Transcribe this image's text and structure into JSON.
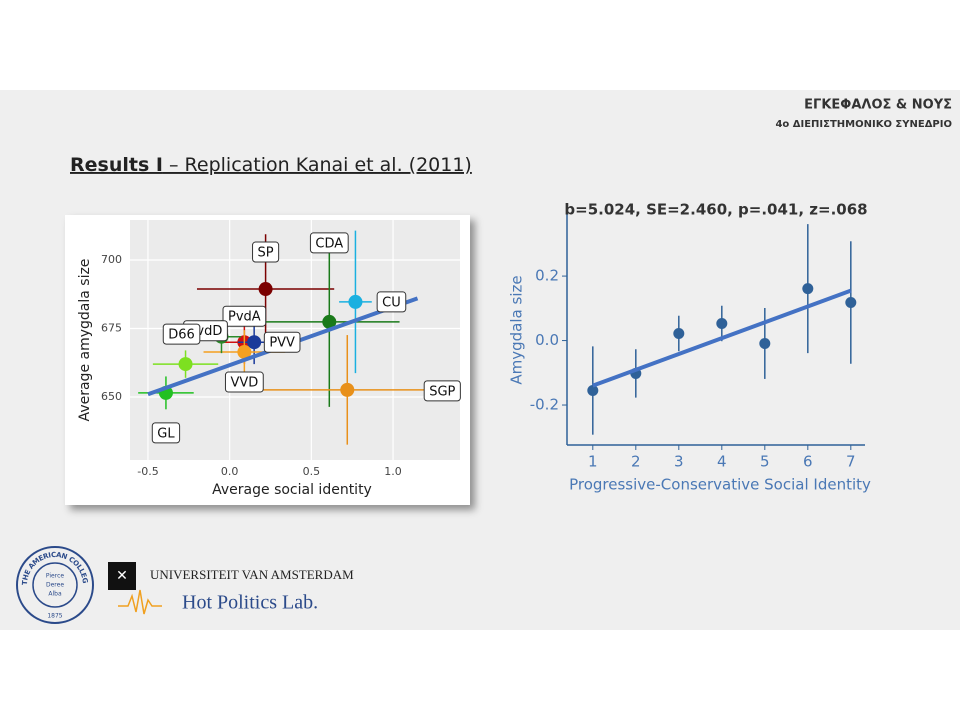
{
  "header": {
    "line1": "ΕΓΚΕΦΑΛΟΣ & ΝΟΥΣ",
    "line2": "4ο ΔΙΕΠΙΣΤΗΜΟΝΙΚΟ ΣΥΝΕΔΡΙΟ"
  },
  "slide_title": {
    "bold": "Results I",
    "rest": " – Replication Kanai et al. (2011)"
  },
  "logos": {
    "college_ring": "THE AMERICAN COLLEGE OF GREECE",
    "college_motto": [
      "Pierce",
      "Deree",
      "Alba"
    ],
    "college_year": "1875",
    "university": "UNIVERSITEIT VAN AMSTERDAM",
    "lab": "Hot Politics Lab."
  },
  "chart_data": [
    {
      "type": "scatter",
      "x_label": "Average social identity",
      "y_label": "Average amygdala size",
      "labels": [
        "SP",
        "CDA",
        "CU",
        "SGP",
        "PvdA",
        "PVV",
        "VVD",
        "PvdD",
        "D66",
        "GL"
      ],
      "x": [
        0.22,
        0.61,
        0.77,
        0.72,
        0.09,
        0.15,
        0.09,
        -0.05,
        -0.27,
        -0.39
      ],
      "y": [
        689.4,
        677.4,
        684.7,
        652.6,
        670,
        670,
        666.4,
        672,
        662,
        651.5
      ],
      "xerr": [
        0.42,
        0.43,
        0.1,
        0.65,
        0.15,
        0.1,
        0.25,
        0.12,
        0.2,
        0.17
      ],
      "yerr": [
        20,
        31,
        26,
        20,
        8,
        8,
        8,
        6,
        5,
        6
      ],
      "colors": [
        "#7b0000",
        "#1a7a1a",
        "#1ab0e0",
        "#e8901a",
        "#d01010",
        "#1a3a9a",
        "#f5a020",
        "#2a8a2a",
        "#7de020",
        "#22c022"
      ],
      "fit": {
        "x": [
          -0.5,
          1.15
        ],
        "y": [
          651,
          686
        ],
        "color": "#4472c4"
      },
      "xlim": [
        -0.61,
        1.41
      ],
      "ylim": [
        627,
        714.6
      ],
      "xticks": [
        {
          "value": -0.5,
          "label": "-0.5"
        },
        {
          "value": 0,
          "label": "0.0"
        },
        {
          "value": 0.5,
          "label": "0.5"
        },
        {
          "value": 1,
          "label": "1.0"
        }
      ],
      "yticks": [
        650,
        675,
        700
      ],
      "grid": true
    },
    {
      "type": "scatter",
      "annotation": "b=5.024, SE=2.460, p=.041, z=.068",
      "x_label": "Progressive-Conservative Social Identity",
      "y_label": "Amygdala size",
      "x": [
        1,
        2,
        3,
        4,
        5,
        6,
        7
      ],
      "y": [
        -0.155,
        -0.102,
        0.022,
        0.053,
        -0.009,
        0.161,
        0.118
      ],
      "yerr": [
        0.137,
        0.075,
        0.055,
        0.055,
        0.11,
        0.2,
        0.19
      ],
      "color": "#2f6198",
      "fit": {
        "x": [
          1,
          7
        ],
        "y": [
          -0.14,
          0.155
        ],
        "color": "#4472c4"
      },
      "xlim": [
        0.4,
        7.33
      ],
      "ylim": [
        -0.324,
        0.405
      ],
      "xticks": [
        1,
        2,
        3,
        4,
        5,
        6,
        7
      ],
      "yticks": [
        -0.2,
        {
          "value": 0,
          "label": "0.0"
        },
        0.2
      ],
      "grid": false
    }
  ]
}
